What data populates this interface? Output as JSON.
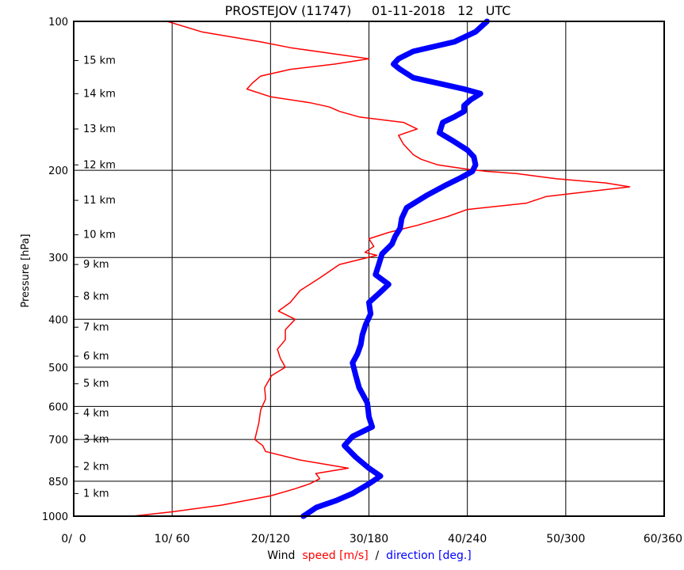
{
  "chart_data": {
    "type": "line",
    "title": "PROSTEJOV (11747)     01-11-2018   12   UTC",
    "ylabel": "Pressure [hPa]",
    "xlabel_parts": [
      {
        "text": "Wind",
        "color": "#000000"
      },
      {
        "text": "speed [m/s]",
        "color": "#ff0000"
      },
      {
        "text": "/",
        "color": "#000000"
      },
      {
        "text": "direction [deg.]",
        "color": "#0000ff"
      }
    ],
    "y_scale": "log",
    "ylim": [
      1000,
      100
    ],
    "y_ticks": [
      100,
      200,
      300,
      400,
      500,
      600,
      700,
      850,
      1000
    ],
    "xlim_speed": [
      0,
      60
    ],
    "xlim_direction": [
      0,
      360
    ],
    "x_ticks": [
      {
        "speed": 0,
        "label": "0/  0"
      },
      {
        "speed": 10,
        "label": "10/ 60"
      },
      {
        "speed": 20,
        "label": "20/120"
      },
      {
        "speed": 30,
        "label": "30/180"
      },
      {
        "speed": 40,
        "label": "40/240"
      },
      {
        "speed": 50,
        "label": "50/300"
      },
      {
        "speed": 60,
        "label": "60/360"
      }
    ],
    "grid": true,
    "height_markers": [
      {
        "label": "15 km",
        "pressure": 120
      },
      {
        "label": "14 km",
        "pressure": 140
      },
      {
        "label": "13 km",
        "pressure": 165
      },
      {
        "label": "12 km",
        "pressure": 195
      },
      {
        "label": "11 km",
        "pressure": 230
      },
      {
        "label": "10 km",
        "pressure": 270
      },
      {
        "label": "9 km",
        "pressure": 310
      },
      {
        "label": "8 km",
        "pressure": 360
      },
      {
        "label": "7 km",
        "pressure": 415
      },
      {
        "label": "6 km",
        "pressure": 475
      },
      {
        "label": "5 km",
        "pressure": 540
      },
      {
        "label": "4 km",
        "pressure": 620
      },
      {
        "label": "3 km",
        "pressure": 700
      },
      {
        "label": "2 km",
        "pressure": 795
      },
      {
        "label": "1 km",
        "pressure": 900
      }
    ],
    "series": [
      {
        "key": "speed",
        "color": "#ff0000",
        "points": [
          [
            100,
            9.5
          ],
          [
            105,
            13
          ],
          [
            110,
            19
          ],
          [
            113,
            22
          ],
          [
            116,
            26
          ],
          [
            119,
            30
          ],
          [
            122,
            26.5
          ],
          [
            125,
            22
          ],
          [
            129,
            19
          ],
          [
            133,
            18.2
          ],
          [
            137,
            17.6
          ],
          [
            142,
            20
          ],
          [
            146,
            24
          ],
          [
            149,
            26
          ],
          [
            152,
            27
          ],
          [
            156,
            29
          ],
          [
            160,
            33.5
          ],
          [
            165,
            34.9
          ],
          [
            170,
            33
          ],
          [
            177,
            33.5
          ],
          [
            186,
            34.5
          ],
          [
            190,
            35.3
          ],
          [
            195,
            37
          ],
          [
            199,
            40
          ],
          [
            201,
            42
          ],
          [
            203,
            45
          ],
          [
            208,
            49
          ],
          [
            212,
            54
          ],
          [
            216,
            56.5
          ],
          [
            220,
            53
          ],
          [
            226,
            48
          ],
          [
            233,
            46
          ],
          [
            240,
            40
          ],
          [
            248,
            38
          ],
          [
            258,
            35
          ],
          [
            267,
            32
          ],
          [
            275,
            30
          ],
          [
            285,
            30.5
          ],
          [
            293,
            29.6
          ],
          [
            297,
            30.8
          ],
          [
            310,
            27
          ],
          [
            330,
            25
          ],
          [
            350,
            23
          ],
          [
            370,
            22
          ],
          [
            385,
            20.8
          ],
          [
            400,
            22.5
          ],
          [
            420,
            21.5
          ],
          [
            440,
            21.5
          ],
          [
            460,
            20.7
          ],
          [
            480,
            21
          ],
          [
            500,
            21.5
          ],
          [
            520,
            20.1
          ],
          [
            550,
            19.4
          ],
          [
            580,
            19.5
          ],
          [
            610,
            19
          ],
          [
            650,
            18.8
          ],
          [
            700,
            18.4
          ],
          [
            720,
            19.2
          ],
          [
            740,
            19.5
          ],
          [
            770,
            23
          ],
          [
            800,
            27.9
          ],
          [
            820,
            24.6
          ],
          [
            840,
            25
          ],
          [
            860,
            24
          ],
          [
            880,
            22.5
          ],
          [
            910,
            20
          ],
          [
            950,
            15
          ],
          [
            980,
            10
          ],
          [
            1000,
            6
          ]
        ]
      },
      {
        "key": "direction",
        "color": "#0000ff",
        "points": [
          [
            100,
            252
          ],
          [
            105,
            245
          ],
          [
            110,
            232
          ],
          [
            115,
            207
          ],
          [
            119,
            198
          ],
          [
            122,
            195
          ],
          [
            125,
            199
          ],
          [
            130,
            207
          ],
          [
            134,
            225
          ],
          [
            137,
            238
          ],
          [
            140,
            248
          ],
          [
            144,
            242
          ],
          [
            148,
            238
          ],
          [
            152,
            238
          ],
          [
            156,
            232
          ],
          [
            160,
            225
          ],
          [
            168,
            223
          ],
          [
            175,
            232
          ],
          [
            182,
            240
          ],
          [
            188,
            244
          ],
          [
            195,
            245
          ],
          [
            201,
            243
          ],
          [
            207,
            236
          ],
          [
            215,
            226
          ],
          [
            225,
            215
          ],
          [
            238,
            203
          ],
          [
            250,
            200
          ],
          [
            262,
            199
          ],
          [
            272,
            196
          ],
          [
            282,
            194
          ],
          [
            295,
            188
          ],
          [
            310,
            186
          ],
          [
            325,
            184
          ],
          [
            340,
            192
          ],
          [
            355,
            186
          ],
          [
            370,
            180
          ],
          [
            390,
            181
          ],
          [
            410,
            178
          ],
          [
            430,
            176
          ],
          [
            450,
            175
          ],
          [
            470,
            173
          ],
          [
            490,
            170
          ],
          [
            520,
            172
          ],
          [
            550,
            174
          ],
          [
            590,
            179
          ],
          [
            630,
            180
          ],
          [
            660,
            182
          ],
          [
            690,
            170
          ],
          [
            720,
            165
          ],
          [
            760,
            172
          ],
          [
            800,
            180
          ],
          [
            830,
            187
          ],
          [
            860,
            180
          ],
          [
            900,
            170
          ],
          [
            930,
            160
          ],
          [
            960,
            148
          ],
          [
            990,
            142
          ],
          [
            1000,
            140
          ]
        ]
      }
    ]
  }
}
